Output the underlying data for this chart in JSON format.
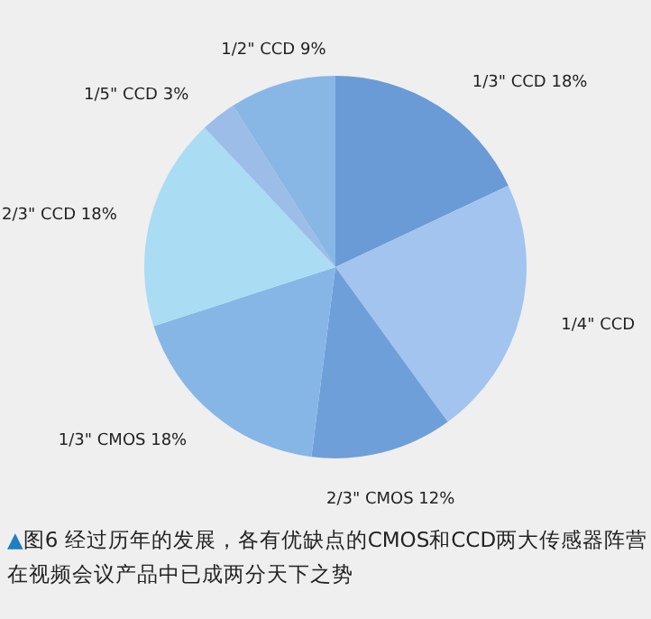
{
  "chart_data": {
    "type": "pie",
    "categories": [
      "1/3\" CCD",
      "1/4\" CCD",
      "2/3\" CMOS",
      "1/3\" CMOS",
      "2/3\" CCD",
      "1/5\" CCD",
      "1/2\" CCD"
    ],
    "values": [
      18,
      22,
      12,
      18,
      18,
      3,
      9
    ],
    "value_labels": [
      "18%",
      null,
      "12%",
      "18%",
      "18%",
      "3%",
      "9%"
    ],
    "colors": [
      "#6a9bd6",
      "#a3c4ee",
      "#6f9fd8",
      "#86b6e6",
      "#aadcf4",
      "#9bbde8",
      "#88b7e6"
    ],
    "annotations": [
      "▲图6 经过历年的发展，各有优缺点的CMOS和CCD两大传感器阵营在视频会议产品中已成两分天下之势"
    ]
  }
}
